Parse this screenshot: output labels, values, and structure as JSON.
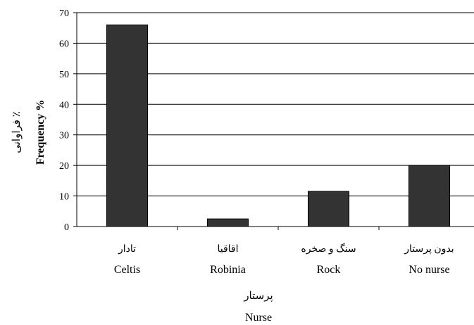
{
  "chart_data": {
    "type": "bar",
    "categories": [
      "Celtis",
      "Robinia",
      "Rock",
      "No nurse"
    ],
    "categories_fa": [
      "تادار",
      "اقاقیا",
      "سنگ و صخره",
      "بدون پرستار"
    ],
    "values": [
      66,
      2.5,
      11.5,
      20
    ],
    "xlabel": "Nurse",
    "xlabel_fa": "پرستار",
    "ylabel": "Frequency %",
    "ylabel_fa": "فراوانی ٪",
    "ylim": [
      0,
      70
    ],
    "yticks": [
      0,
      10,
      20,
      30,
      40,
      50,
      60,
      70
    ],
    "grid": true,
    "bar_color": "#333333"
  }
}
